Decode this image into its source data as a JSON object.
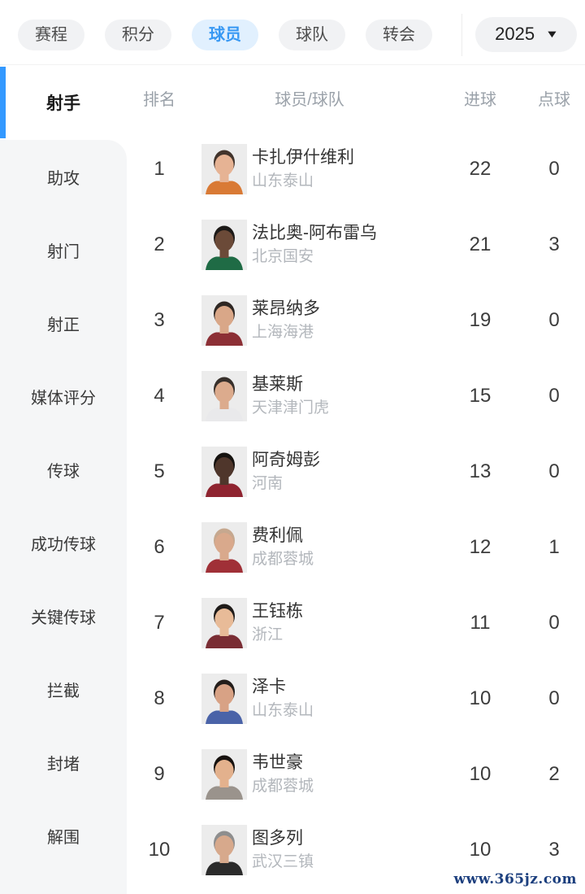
{
  "header": {
    "tabs": [
      {
        "label": "赛程",
        "active": false
      },
      {
        "label": "积分",
        "active": false
      },
      {
        "label": "球员",
        "active": true
      },
      {
        "label": "球队",
        "active": false
      },
      {
        "label": "转会",
        "active": false
      }
    ],
    "year_selector": {
      "value": "2025",
      "caret_glyph": "▼"
    }
  },
  "sidebar": {
    "selected": "射手",
    "items": [
      {
        "label": "射手",
        "active": true
      },
      {
        "label": "助攻",
        "active": false
      },
      {
        "label": "射门",
        "active": false
      },
      {
        "label": "射正",
        "active": false
      },
      {
        "label": "媒体评分",
        "active": false
      },
      {
        "label": "传球",
        "active": false
      },
      {
        "label": "成功传球",
        "active": false
      },
      {
        "label": "关键传球",
        "active": false
      },
      {
        "label": "拦截",
        "active": false
      },
      {
        "label": "封堵",
        "active": false
      },
      {
        "label": "解围",
        "active": false
      }
    ]
  },
  "table": {
    "columns": {
      "rank": "排名",
      "player": "球员/球队",
      "goals": "进球",
      "penalties": "点球"
    },
    "rows": [
      {
        "rank": "1",
        "player": "卡扎伊什维利",
        "team": "山东泰山",
        "goals": "22",
        "penalties": "0",
        "avatar": {
          "skin": "#e6b394",
          "hair": "#42342c",
          "shirt": "#d97a35"
        }
      },
      {
        "rank": "2",
        "player": "法比奥-阿布雷乌",
        "team": "北京国安",
        "goals": "21",
        "penalties": "3",
        "avatar": {
          "skin": "#6b4a38",
          "hair": "#1d1a18",
          "shirt": "#1f6b45"
        }
      },
      {
        "rank": "3",
        "player": "莱昂纳多",
        "team": "上海海港",
        "goals": "19",
        "penalties": "0",
        "avatar": {
          "skin": "#d9a788",
          "hair": "#2e2723",
          "shirt": "#8c2f35"
        }
      },
      {
        "rank": "4",
        "player": "基莱斯",
        "team": "天津津门虎",
        "goals": "15",
        "penalties": "0",
        "avatar": {
          "skin": "#dcab8d",
          "hair": "#38302b",
          "shirt": "#e9e9eb"
        }
      },
      {
        "rank": "5",
        "player": "阿奇姆彭",
        "team": "河南",
        "goals": "13",
        "penalties": "0",
        "avatar": {
          "skin": "#4f362b",
          "hair": "#15120f",
          "shirt": "#8f2430"
        }
      },
      {
        "rank": "6",
        "player": "费利佩",
        "team": "成都蓉城",
        "goals": "12",
        "penalties": "1",
        "avatar": {
          "skin": "#d9a98c",
          "hair": "#c6a88f",
          "shirt": "#a03037"
        }
      },
      {
        "rank": "7",
        "player": "王钰栋",
        "team": "浙江",
        "goals": "11",
        "penalties": "0",
        "avatar": {
          "skin": "#e8bb98",
          "hair": "#1f1b19",
          "shirt": "#7a2d34"
        }
      },
      {
        "rank": "8",
        "player": "泽卡",
        "team": "山东泰山",
        "goals": "10",
        "penalties": "0",
        "avatar": {
          "skin": "#d8a285",
          "hair": "#241e1b",
          "shirt": "#4a63a8"
        }
      },
      {
        "rank": "9",
        "player": "韦世豪",
        "team": "成都蓉城",
        "goals": "10",
        "penalties": "2",
        "avatar": {
          "skin": "#e3b18d",
          "hair": "#17120f",
          "shirt": "#9a938c"
        }
      },
      {
        "rank": "10",
        "player": "图多列",
        "team": "武汉三镇",
        "goals": "10",
        "penalties": "3",
        "avatar": {
          "skin": "#d7a98c",
          "hair": "#8e8e8e",
          "shirt": "#2b2b2b"
        }
      }
    ]
  },
  "watermark": "www.365jz.com",
  "colors": {
    "accent": "#3399ff",
    "active_tab_bg": "#e1f0fe",
    "active_tab_text": "#3798f3",
    "pill_bg": "#f1f2f4",
    "sidebar_bg": "#f5f6f7",
    "muted_text": "#9aa1a9",
    "team_text": "#b3b7bc",
    "watermark_text": "#1c3f7e"
  }
}
